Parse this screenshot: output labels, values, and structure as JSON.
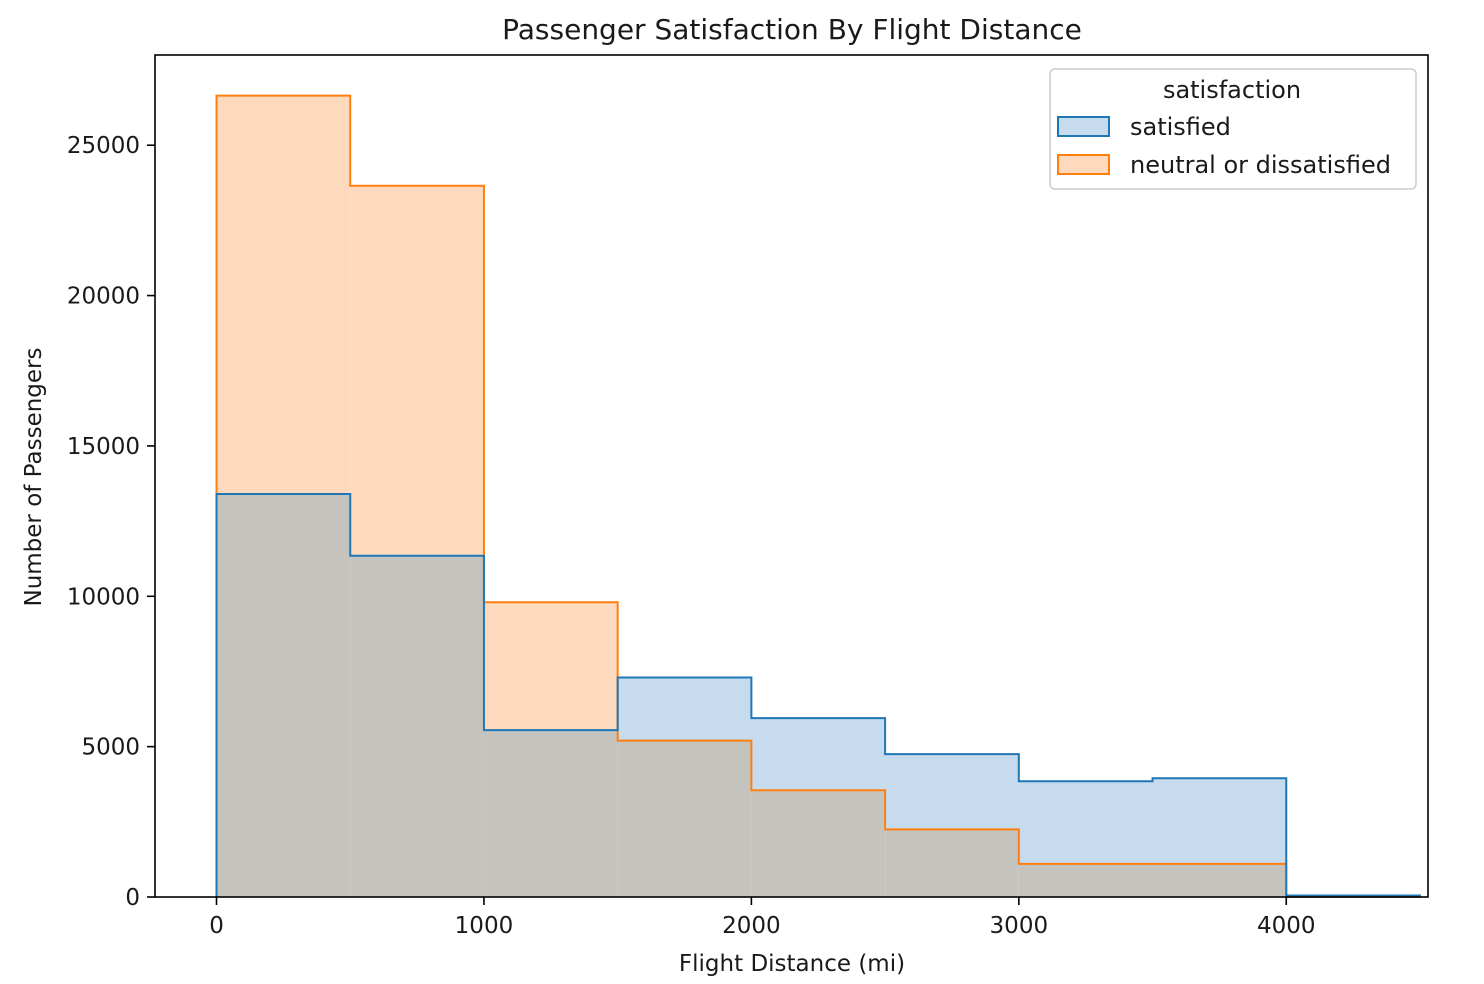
{
  "chart_data": {
    "type": "histogram",
    "title": "Passenger Satisfaction By Flight Distance",
    "xlabel": "Flight Distance (mi)",
    "ylabel": "Number of Passengers",
    "xlim": [
      -230,
      4530
    ],
    "ylim": [
      0,
      28000
    ],
    "xticks": [
      0,
      1000,
      2000,
      3000,
      4000
    ],
    "yticks": [
      0,
      5000,
      10000,
      15000,
      20000,
      25000
    ],
    "bin_edges": [
      0,
      500,
      1000,
      1500,
      2000,
      2500,
      3000,
      3500,
      4000,
      4500
    ],
    "grid": false,
    "legend": {
      "title": "satisfaction",
      "placement": "top-right"
    },
    "series": [
      {
        "name": "satisfied",
        "line_color": "#1f77b4",
        "fill_color": "#c6dbee",
        "values": [
          13400,
          11350,
          5550,
          7300,
          5950,
          4750,
          3850,
          3950,
          50
        ]
      },
      {
        "name": "neutral or dissatisfied",
        "line_color": "#ff7f0e",
        "fill_color": "#fdd9bd",
        "values": [
          26650,
          23650,
          9800,
          5200,
          3550,
          2250,
          1100,
          1100,
          0
        ]
      }
    ],
    "overlap_color": "#c5c3be"
  }
}
